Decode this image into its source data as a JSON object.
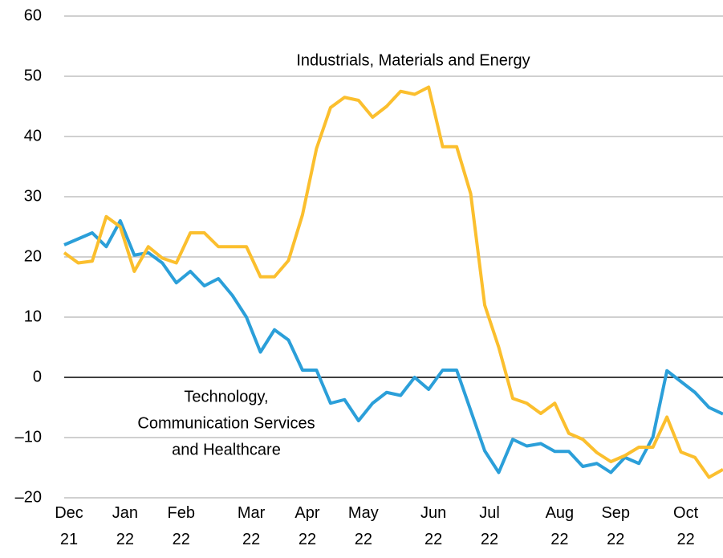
{
  "chart_data": {
    "type": "line",
    "categories": [
      "Dec 21",
      null,
      null,
      null,
      "Jan 22",
      null,
      null,
      null,
      "Feb 22",
      null,
      null,
      null,
      null,
      "Mar 22",
      null,
      null,
      null,
      "Apr 22",
      null,
      null,
      null,
      "May 22",
      null,
      null,
      null,
      null,
      "Jun 22",
      null,
      null,
      null,
      "Jul 22",
      null,
      null,
      null,
      null,
      "Aug 22",
      null,
      null,
      null,
      "Sep 22",
      null,
      null,
      null,
      null,
      "Oct 22",
      null,
      null,
      null
    ],
    "series": [
      {
        "color": "#2b9fd9",
        "values": [
          22,
          23,
          24,
          21.7,
          26,
          20.3,
          20.7,
          19,
          15.7,
          17.6,
          15.2,
          16.4,
          13.6,
          10,
          4.2,
          7.9,
          6.2,
          1.2,
          1.2,
          -4.3,
          -3.7,
          -7.2,
          -4.3,
          -2.5,
          -3,
          0,
          -2,
          1.2,
          1.2,
          -5.5,
          -12.2,
          -15.8,
          -10.3,
          -11.4,
          -11,
          -12.3,
          -12.3,
          -14.8,
          -14.3,
          -15.8,
          -13.3,
          -14.3,
          -9.9,
          1.1,
          -0.7,
          -2.5,
          -5,
          -6.1
        ]
      },
      {
        "color": "#fbbf2e",
        "values": [
          20.7,
          19,
          19.3,
          26.7,
          25,
          17.6,
          21.7,
          19.8,
          19,
          24,
          24,
          21.7,
          21.7,
          21.7,
          16.7,
          16.7,
          19.4,
          27,
          38,
          44.8,
          46.5,
          46,
          43.2,
          45,
          47.5,
          47,
          48.2,
          38.3,
          38.3,
          30.5,
          12,
          5,
          -3.5,
          -4.3,
          -6,
          -4.3,
          -9.3,
          -10.3,
          -12.5,
          -14,
          -13,
          -11.6,
          -11.6,
          -6.6,
          -12.4,
          -13.3,
          -16.6,
          -15.3
        ]
      }
    ],
    "annotations": [
      {
        "lines": [
          "Industrials, Materials and Energy"
        ]
      },
      {
        "lines": [
          "Technology,",
          "Communication Services",
          "and Healthcare"
        ]
      }
    ],
    "ylim": [
      -20,
      60
    ],
    "yticks": [
      {
        "value": -20,
        "label": "–20"
      },
      {
        "value": -10,
        "label": "–10"
      },
      0,
      10,
      20,
      30,
      40,
      50,
      60
    ],
    "grid": true
  }
}
